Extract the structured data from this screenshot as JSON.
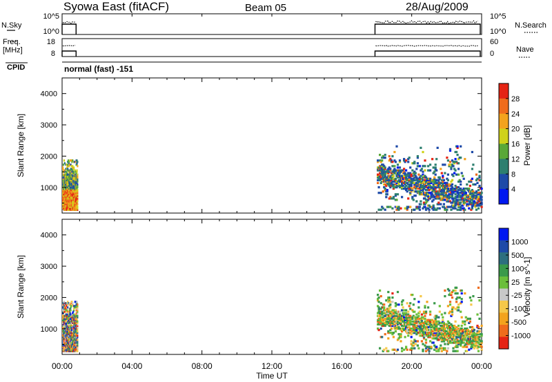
{
  "header": {
    "station": "Syowa East (fitACF)",
    "beam": "Beam 05",
    "date": "28/Aug/2009"
  },
  "top_panels": {
    "nsky_label": "N.Sky",
    "nsky_ticks": [
      "10^5",
      "10^0"
    ],
    "nsearch_label": "N.Search",
    "nsearch_ticks": [
      "10^5",
      "10^0"
    ],
    "freq_label_1": "Freq.",
    "freq_label_2": "[MHz]",
    "freq_ticks": [
      "18",
      "8"
    ],
    "nave_label": "Nave",
    "nave_ticks": [
      "60",
      "0"
    ],
    "cpid_label": "CPID",
    "cpid_text": "normal (fast) -151"
  },
  "time_axis": {
    "ticks": [
      "00:00",
      "04:00",
      "08:00",
      "12:00",
      "16:00",
      "20:00",
      "00:00"
    ],
    "label": "Time UT"
  },
  "colors": {
    "power_scale": [
      "#0018f0",
      "#1e4aa8",
      "#2d7f6f",
      "#5aa838",
      "#cfd21a",
      "#f3a31d",
      "#ef6c1c",
      "#e52414"
    ],
    "velocity_scale": [
      "#e52414",
      "#ef6c1c",
      "#f3a31d",
      "#f5c84a",
      "#c8c8c8",
      "#6bbf3b",
      "#3a9a4a",
      "#2d6f7f",
      "#1e4aa8",
      "#0018f0"
    ]
  },
  "chart_data": [
    {
      "type": "heatmap",
      "panel": "power",
      "ylabel": "Slant Range [km]",
      "yticks": [
        "4000",
        "3000",
        "2000",
        "1000"
      ],
      "ylim": [
        180,
        4500
      ],
      "xlim_hours": [
        0,
        24
      ],
      "colorbar_label": "Power [dB]",
      "colorbar_ticks": [
        "28",
        "24",
        "20",
        "16",
        "12",
        "8",
        "4"
      ],
      "clim": [
        0,
        32
      ],
      "regions": [
        {
          "t": [
            0.0,
            0.9
          ],
          "range": [
            200,
            1850
          ],
          "dominant": "mixed high power"
        },
        {
          "t": [
            18.0,
            23.9
          ],
          "range": [
            200,
            2300
          ],
          "dominant": "scattered low/mid power"
        }
      ]
    },
    {
      "type": "heatmap",
      "panel": "velocity",
      "ylabel": "Slant Range [km]",
      "yticks": [
        "4000",
        "3000",
        "2000",
        "1000"
      ],
      "ylim": [
        180,
        4500
      ],
      "xlim_hours": [
        0,
        24
      ],
      "colorbar_label": "Velocity [m s^-1]",
      "colorbar_ticks": [
        "1000",
        "500",
        "100",
        "25",
        "-25",
        "-100",
        "-500",
        "-1000"
      ],
      "clim": [
        -1250,
        1250
      ],
      "regions": [
        {
          "t": [
            0.0,
            0.9
          ],
          "range": [
            200,
            1850
          ],
          "dominant": "mixed"
        },
        {
          "t": [
            18.0,
            23.9
          ],
          "range": [
            200,
            2300
          ],
          "dominant": "mostly green/orange"
        }
      ]
    }
  ]
}
